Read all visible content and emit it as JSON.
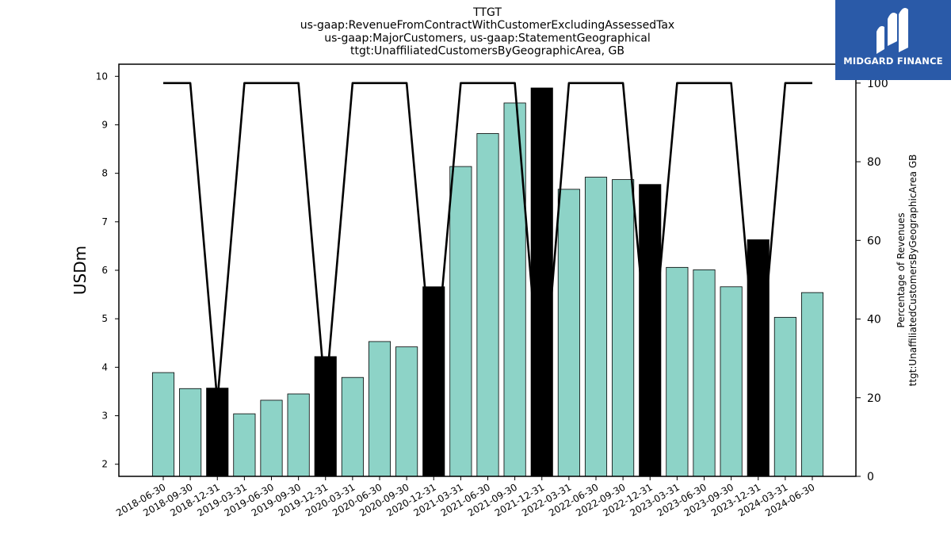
{
  "chart_data": {
    "type": "bar",
    "title_lines": [
      "TTGT",
      "us-gaap:RevenueFromContractWithCustomerExcludingAssessedTax",
      "us-gaap:MajorCustomers, us-gaap:StatementGeographical",
      "ttgt:UnaffiliatedCustomersByGeographicArea, GB"
    ],
    "ylabel": "USDm",
    "ylabel_right_lines": [
      "Percentage of Revenues",
      "ttgt:UnaffiliatedCustomersByGeographicArea GB"
    ],
    "ylim": [
      1.75,
      10.25
    ],
    "ylim_right": [
      0,
      104.8
    ],
    "yticks": [
      2,
      3,
      4,
      5,
      6,
      7,
      8,
      9,
      10
    ],
    "yticks_right": [
      0,
      20,
      40,
      60,
      80,
      100
    ],
    "categories": [
      "2018-06-30",
      "2018-09-30",
      "2018-12-31",
      "2019-03-31",
      "2019-06-30",
      "2019-09-30",
      "2019-12-31",
      "2020-03-31",
      "2020-06-30",
      "2020-09-30",
      "2020-12-31",
      "2021-03-31",
      "2021-06-30",
      "2021-09-30",
      "2021-12-31",
      "2022-03-31",
      "2022-06-30",
      "2022-09-30",
      "2022-12-31",
      "2023-03-31",
      "2023-06-30",
      "2023-09-30",
      "2023-12-31",
      "2024-03-31",
      "2024-06-30"
    ],
    "series": [
      {
        "type": "bar",
        "values": [
          3.89,
          3.56,
          3.57,
          3.04,
          3.32,
          3.45,
          4.22,
          3.79,
          4.53,
          4.42,
          5.66,
          8.14,
          8.82,
          9.45,
          9.76,
          7.67,
          7.92,
          7.87,
          7.77,
          6.06,
          6.01,
          5.66,
          6.63,
          5.03,
          5.54
        ],
        "highlight": [
          false,
          false,
          true,
          false,
          false,
          false,
          true,
          false,
          false,
          false,
          true,
          false,
          false,
          false,
          true,
          false,
          false,
          false,
          true,
          false,
          false,
          false,
          true,
          false,
          false
        ]
      },
      {
        "type": "line",
        "axis": "right",
        "values": [
          100,
          100,
          19,
          100,
          100,
          100,
          20,
          100,
          100,
          100,
          23,
          100,
          100,
          100,
          16,
          100,
          100,
          100,
          24,
          100,
          100,
          100,
          21,
          100,
          100
        ]
      }
    ],
    "colors": {
      "bar": "#8dd3c7",
      "bar_highlight": "#000000",
      "line": "#000000"
    },
    "grid": false
  },
  "logo": {
    "text": "MIDGARD FINANCE",
    "background": "#2a5aa8"
  }
}
